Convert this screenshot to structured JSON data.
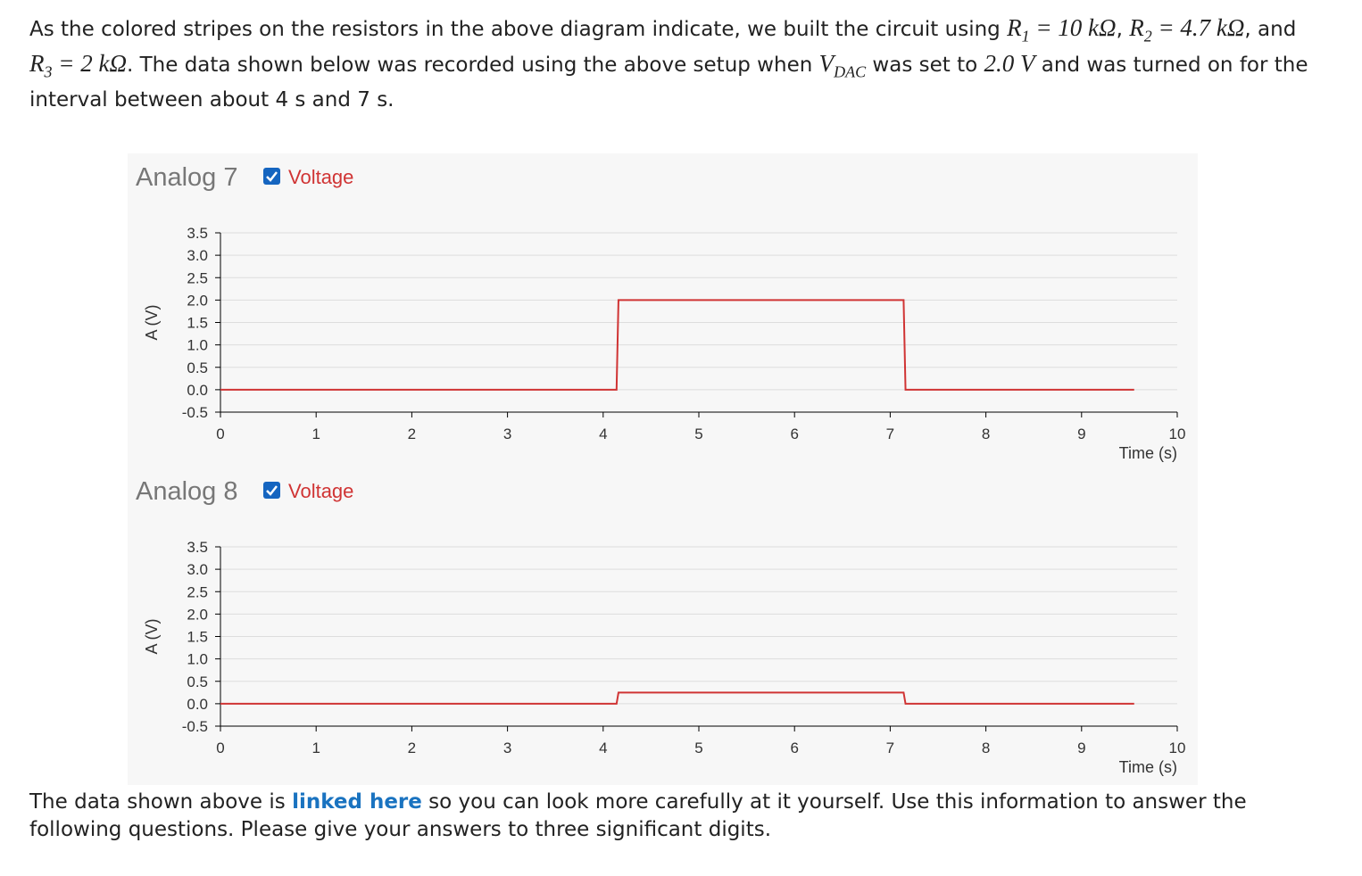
{
  "document": {
    "intro": [
      {
        "text": "As the colored stripes on the resistors in the above diagram indicate, we built the circuit using "
      },
      {
        "math": "R",
        "sub": "1",
        "rest": " = 10 kΩ"
      },
      {
        "text": ", "
      },
      {
        "math": "R",
        "sub": "2",
        "rest": " = 4.7 kΩ"
      },
      {
        "text": ", and "
      },
      {
        "math": "R",
        "sub": "3",
        "rest": " = 2 kΩ"
      },
      {
        "text": ". The data shown below was recorded using the above setup when "
      },
      {
        "math": "V",
        "sub": "DAC"
      },
      {
        "text": " was set to "
      },
      {
        "math": "2.0 V"
      },
      {
        "text": " and was turned on for the interval between about 4 s and 7 s."
      }
    ],
    "outro": {
      "before": "The data shown above is ",
      "link": "linked here",
      "after": " so you can look more carefully at it yourself. Use this information to answer the following questions. Please give your answers to three significant digits."
    }
  },
  "chart_data": [
    {
      "type": "line",
      "title": "Analog 7",
      "xlabel": "Time (s)",
      "ylabel": "A (V)",
      "x": [
        0,
        4.14,
        4.16,
        7.14,
        7.16,
        9.55
      ],
      "series": [
        {
          "name": "Voltage",
          "color": "#d03434",
          "values": [
            0,
            0,
            2,
            2,
            0,
            0
          ]
        }
      ],
      "xlim": [
        0,
        10
      ],
      "xticks": [
        0,
        1,
        2,
        3,
        4,
        5,
        6,
        7,
        8,
        9,
        10
      ],
      "ylim": [
        -0.5,
        3.5
      ],
      "yticks": [
        -0.5,
        {
          "value": 0,
          "label": "0.0"
        },
        0.5,
        {
          "value": 1,
          "label": "1.0"
        },
        1.5,
        {
          "value": 2,
          "label": "2.0"
        },
        2.5,
        {
          "value": 3,
          "label": "3.0"
        },
        3.5
      ],
      "grid": true
    },
    {
      "type": "line",
      "title": "Analog 8",
      "xlabel": "Time (s)",
      "ylabel": "A (V)",
      "x": [
        0,
        4.14,
        4.16,
        7.14,
        7.16,
        9.55
      ],
      "series": [
        {
          "name": "Voltage",
          "color": "#d03434",
          "values": [
            0,
            0,
            0.25,
            0.25,
            0,
            0
          ]
        }
      ],
      "xlim": [
        0,
        10
      ],
      "xticks": [
        0,
        1,
        2,
        3,
        4,
        5,
        6,
        7,
        8,
        9,
        10
      ],
      "ylim": [
        -0.5,
        3.5
      ],
      "yticks": [
        -0.5,
        {
          "value": 0,
          "label": "0.0"
        },
        0.5,
        {
          "value": 1,
          "label": "1.0"
        },
        1.5,
        {
          "value": 2,
          "label": "2.0"
        },
        2.5,
        {
          "value": 3,
          "label": "3.0"
        },
        3.5
      ],
      "grid": true
    }
  ]
}
